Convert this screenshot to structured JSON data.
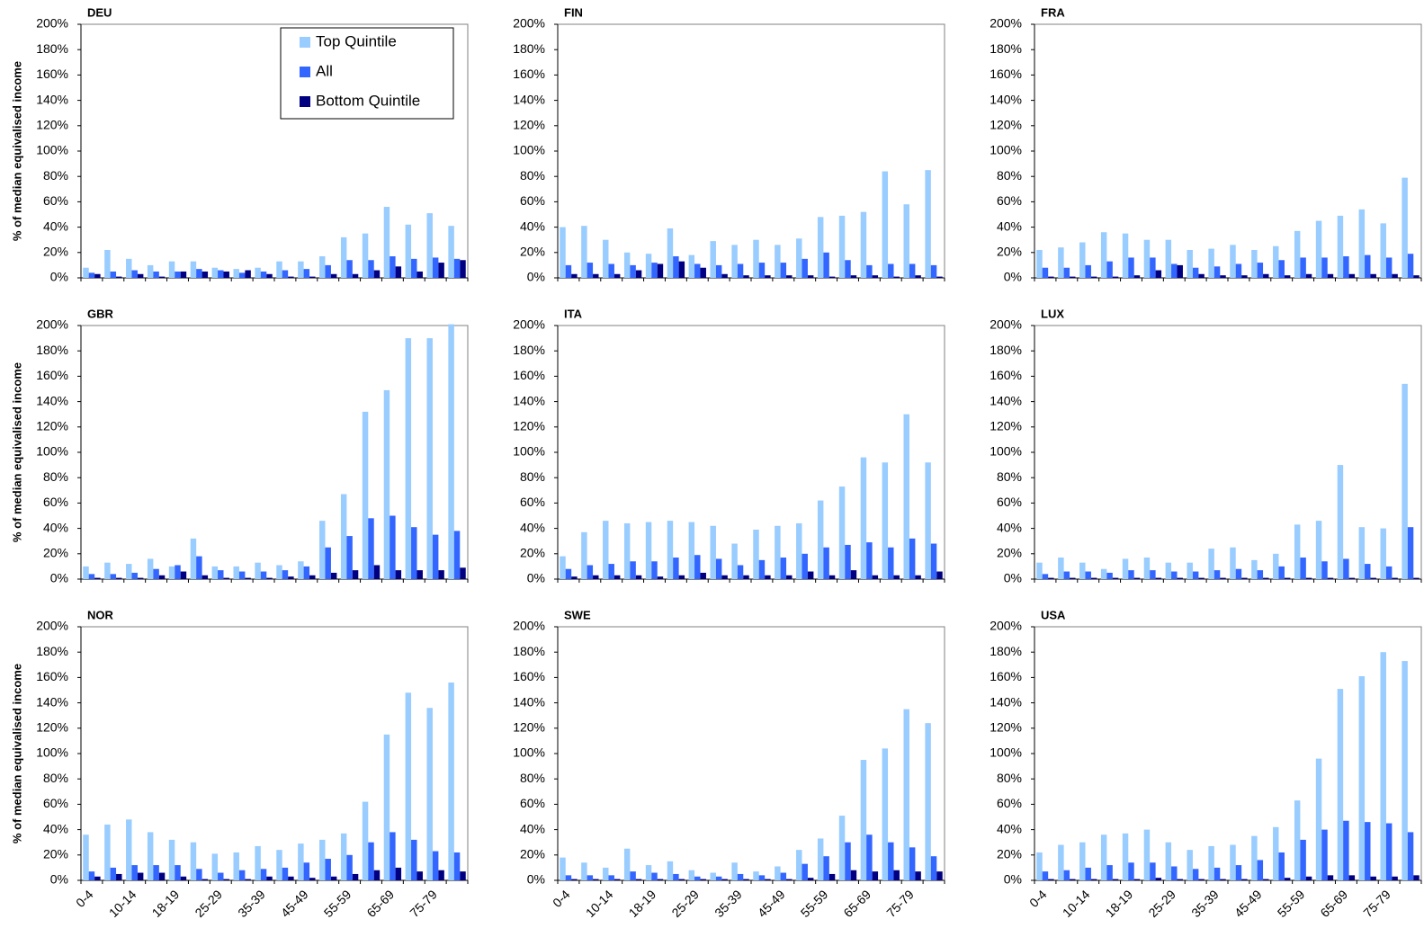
{
  "chart_data": [
    {
      "type": "bar",
      "title": "DEU",
      "ylabel": "% of median equivalised income",
      "legend": "upper right",
      "ylim": [
        0,
        200
      ],
      "yticks": [
        {
          "value": 0,
          "label": "0%"
        },
        {
          "value": 20,
          "label": "20%"
        },
        {
          "value": 40,
          "label": "40%"
        },
        {
          "value": 60,
          "label": "60%"
        },
        {
          "value": 80,
          "label": "80%"
        },
        {
          "value": 100,
          "label": "100%"
        },
        {
          "value": 120,
          "label": "120%"
        },
        {
          "value": 140,
          "label": "140%"
        },
        {
          "value": 160,
          "label": "160%"
        },
        {
          "value": 180,
          "label": "180%"
        },
        {
          "value": 200,
          "label": "200%"
        }
      ],
      "series": [
        {
          "name": "Top Quintile",
          "color": "#99ccff",
          "values": [
            8,
            22,
            15,
            10,
            13,
            13,
            8,
            7,
            8,
            13,
            13,
            17,
            32,
            35,
            56,
            42,
            51,
            41
          ]
        },
        {
          "name": "All",
          "color": "#3366ff",
          "values": [
            4,
            5,
            6,
            5,
            5,
            7,
            6,
            4,
            5,
            6,
            7,
            10,
            14,
            14,
            17,
            15,
            16,
            15
          ]
        },
        {
          "name": "Bottom Quintile",
          "color": "#000080",
          "values": [
            3,
            1,
            3,
            1,
            5,
            5,
            5,
            6,
            3,
            1,
            1,
            3,
            3,
            6,
            9,
            5,
            12,
            14
          ]
        }
      ]
    },
    {
      "type": "bar",
      "title": "FIN",
      "ylim": [
        0,
        200
      ],
      "yticks": [
        {
          "value": 0,
          "label": "0%"
        },
        {
          "value": 20,
          "label": "20%"
        },
        {
          "value": 40,
          "label": "40%"
        },
        {
          "value": 60,
          "label": "60%"
        },
        {
          "value": 80,
          "label": "80%"
        },
        {
          "value": 100,
          "label": "100%"
        },
        {
          "value": 120,
          "label": "120%"
        },
        {
          "value": 140,
          "label": "140%"
        },
        {
          "value": 160,
          "label": "160%"
        },
        {
          "value": 180,
          "label": "180%"
        },
        {
          "value": 200,
          "label": "200%"
        }
      ],
      "series": [
        {
          "color": "#99ccff",
          "values": [
            40,
            41,
            30,
            20,
            19,
            39,
            18,
            29,
            26,
            30,
            26,
            31,
            48,
            49,
            52,
            84,
            58,
            85
          ]
        },
        {
          "color": "#3366ff",
          "values": [
            10,
            12,
            11,
            10,
            12,
            17,
            11,
            10,
            11,
            12,
            12,
            15,
            20,
            14,
            10,
            11,
            11,
            10
          ]
        },
        {
          "color": "#000080",
          "values": [
            3,
            3,
            3,
            6,
            11,
            13,
            8,
            3,
            2,
            2,
            2,
            2,
            1,
            2,
            2,
            1,
            2,
            1
          ]
        }
      ]
    },
    {
      "type": "bar",
      "title": "FRA",
      "ylim": [
        0,
        200
      ],
      "yticks": [
        {
          "value": 0,
          "label": "0%"
        },
        {
          "value": 20,
          "label": "20%"
        },
        {
          "value": 40,
          "label": "40%"
        },
        {
          "value": 60,
          "label": "60%"
        },
        {
          "value": 80,
          "label": "80%"
        },
        {
          "value": 100,
          "label": "100%"
        },
        {
          "value": 120,
          "label": "120%"
        },
        {
          "value": 140,
          "label": "140%"
        },
        {
          "value": 160,
          "label": "160%"
        },
        {
          "value": 180,
          "label": "180%"
        },
        {
          "value": 200,
          "label": "200%"
        }
      ],
      "series": [
        {
          "color": "#99ccff",
          "values": [
            22,
            24,
            28,
            36,
            35,
            30,
            30,
            22,
            23,
            26,
            22,
            25,
            37,
            45,
            49,
            54,
            43,
            79
          ]
        },
        {
          "color": "#3366ff",
          "values": [
            8,
            8,
            10,
            13,
            16,
            16,
            11,
            8,
            9,
            11,
            12,
            14,
            16,
            16,
            17,
            18,
            16,
            19
          ]
        },
        {
          "color": "#000080",
          "values": [
            1,
            1,
            1,
            1,
            2,
            6,
            10,
            3,
            2,
            2,
            3,
            2,
            3,
            3,
            3,
            3,
            3,
            2
          ]
        }
      ]
    },
    {
      "type": "bar",
      "title": "GBR",
      "ylabel": "% of median equivalised income",
      "ylim": [
        0,
        200
      ],
      "yticks": [
        {
          "value": 0,
          "label": "0%"
        },
        {
          "value": 20,
          "label": "20%"
        },
        {
          "value": 40,
          "label": "40%"
        },
        {
          "value": 60,
          "label": "60%"
        },
        {
          "value": 80,
          "label": "80%"
        },
        {
          "value": 100,
          "label": "100%"
        },
        {
          "value": 120,
          "label": "120%"
        },
        {
          "value": 140,
          "label": "140%"
        },
        {
          "value": 160,
          "label": "160%"
        },
        {
          "value": 180,
          "label": "180%"
        },
        {
          "value": 200,
          "label": "200%"
        }
      ],
      "series": [
        {
          "color": "#99ccff",
          "values": [
            10,
            13,
            12,
            16,
            10,
            32,
            10,
            10,
            13,
            11,
            14,
            46,
            67,
            132,
            149,
            190,
            190,
            201
          ]
        },
        {
          "color": "#3366ff",
          "values": [
            4,
            4,
            5,
            8,
            11,
            18,
            7,
            6,
            6,
            7,
            10,
            25,
            34,
            48,
            50,
            41,
            35,
            38
          ]
        },
        {
          "color": "#000080",
          "values": [
            1,
            1,
            1,
            3,
            6,
            3,
            1,
            1,
            1,
            2,
            3,
            5,
            7,
            11,
            7,
            7,
            7,
            9
          ]
        }
      ]
    },
    {
      "type": "bar",
      "title": "ITA",
      "ylim": [
        0,
        200
      ],
      "yticks": [
        {
          "value": 0,
          "label": "0%"
        },
        {
          "value": 20,
          "label": "20%"
        },
        {
          "value": 40,
          "label": "40%"
        },
        {
          "value": 60,
          "label": "60%"
        },
        {
          "value": 80,
          "label": "80%"
        },
        {
          "value": 100,
          "label": "100%"
        },
        {
          "value": 120,
          "label": "120%"
        },
        {
          "value": 140,
          "label": "140%"
        },
        {
          "value": 160,
          "label": "160%"
        },
        {
          "value": 180,
          "label": "180%"
        },
        {
          "value": 200,
          "label": "200%"
        }
      ],
      "series": [
        {
          "color": "#99ccff",
          "values": [
            18,
            37,
            46,
            44,
            45,
            46,
            45,
            42,
            28,
            39,
            42,
            44,
            62,
            73,
            96,
            92,
            130,
            92
          ]
        },
        {
          "color": "#3366ff",
          "values": [
            8,
            11,
            12,
            14,
            14,
            17,
            19,
            16,
            11,
            15,
            17,
            20,
            25,
            27,
            29,
            25,
            32,
            28
          ]
        },
        {
          "color": "#000080",
          "values": [
            2,
            3,
            3,
            3,
            2,
            3,
            5,
            3,
            3,
            3,
            3,
            6,
            3,
            7,
            3,
            3,
            3,
            6
          ]
        }
      ]
    },
    {
      "type": "bar",
      "title": "LUX",
      "ylim": [
        0,
        200
      ],
      "yticks": [
        {
          "value": 0,
          "label": "0%"
        },
        {
          "value": 20,
          "label": "20%"
        },
        {
          "value": 40,
          "label": "40%"
        },
        {
          "value": 60,
          "label": "60%"
        },
        {
          "value": 80,
          "label": "80%"
        },
        {
          "value": 100,
          "label": "100%"
        },
        {
          "value": 120,
          "label": "120%"
        },
        {
          "value": 140,
          "label": "140%"
        },
        {
          "value": 160,
          "label": "160%"
        },
        {
          "value": 180,
          "label": "180%"
        },
        {
          "value": 200,
          "label": "200%"
        }
      ],
      "series": [
        {
          "color": "#99ccff",
          "values": [
            13,
            17,
            13,
            8,
            16,
            17,
            13,
            13,
            24,
            25,
            15,
            20,
            43,
            46,
            90,
            41,
            40,
            154
          ]
        },
        {
          "color": "#3366ff",
          "values": [
            4,
            6,
            6,
            5,
            7,
            7,
            6,
            6,
            7,
            8,
            7,
            10,
            17,
            14,
            16,
            12,
            10,
            41
          ]
        },
        {
          "color": "#000080",
          "values": [
            1,
            1,
            1,
            1,
            1,
            1,
            1,
            1,
            1,
            1,
            1,
            1,
            1,
            1,
            1,
            1,
            1,
            1
          ]
        }
      ]
    },
    {
      "type": "bar",
      "title": "NOR",
      "ylabel": "% of median equivalised income",
      "categories": [
        "0-4",
        null,
        "10-14",
        null,
        "18-19",
        null,
        "25-29",
        null,
        "35-39",
        null,
        "45-49",
        null,
        "55-59",
        null,
        "65-69",
        null,
        "75-79",
        null
      ],
      "ylim": [
        0,
        200
      ],
      "yticks": [
        {
          "value": 0,
          "label": "0%"
        },
        {
          "value": 20,
          "label": "20%"
        },
        {
          "value": 40,
          "label": "40%"
        },
        {
          "value": 60,
          "label": "60%"
        },
        {
          "value": 80,
          "label": "80%"
        },
        {
          "value": 100,
          "label": "100%"
        },
        {
          "value": 120,
          "label": "120%"
        },
        {
          "value": 140,
          "label": "140%"
        },
        {
          "value": 160,
          "label": "160%"
        },
        {
          "value": 180,
          "label": "180%"
        },
        {
          "value": 200,
          "label": "200%"
        }
      ],
      "series": [
        {
          "color": "#99ccff",
          "values": [
            36,
            44,
            48,
            38,
            32,
            30,
            21,
            22,
            27,
            24,
            29,
            32,
            37,
            62,
            115,
            148,
            136,
            156
          ]
        },
        {
          "color": "#3366ff",
          "values": [
            7,
            10,
            12,
            12,
            12,
            9,
            6,
            8,
            9,
            10,
            14,
            17,
            20,
            30,
            38,
            32,
            23,
            22
          ]
        },
        {
          "color": "#000080",
          "values": [
            3,
            5,
            6,
            6,
            3,
            1,
            1,
            1,
            3,
            3,
            2,
            3,
            5,
            8,
            10,
            7,
            8,
            7
          ]
        }
      ]
    },
    {
      "type": "bar",
      "title": "SWE",
      "categories": [
        "0-4",
        null,
        "10-14",
        null,
        "18-19",
        null,
        "25-29",
        null,
        "35-39",
        null,
        "45-49",
        null,
        "55-59",
        null,
        "65-69",
        null,
        "75-79",
        null
      ],
      "ylim": [
        0,
        200
      ],
      "yticks": [
        {
          "value": 0,
          "label": "0%"
        },
        {
          "value": 20,
          "label": "20%"
        },
        {
          "value": 40,
          "label": "40%"
        },
        {
          "value": 60,
          "label": "60%"
        },
        {
          "value": 80,
          "label": "80%"
        },
        {
          "value": 100,
          "label": "100%"
        },
        {
          "value": 120,
          "label": "120%"
        },
        {
          "value": 140,
          "label": "140%"
        },
        {
          "value": 160,
          "label": "160%"
        },
        {
          "value": 180,
          "label": "180%"
        },
        {
          "value": 200,
          "label": "200%"
        }
      ],
      "series": [
        {
          "color": "#99ccff",
          "values": [
            18,
            14,
            10,
            25,
            12,
            15,
            8,
            6,
            14,
            7,
            11,
            24,
            33,
            51,
            95,
            104,
            135,
            124
          ]
        },
        {
          "color": "#3366ff",
          "values": [
            4,
            4,
            4,
            7,
            6,
            5,
            3,
            3,
            5,
            4,
            6,
            13,
            19,
            30,
            36,
            30,
            26,
            19
          ]
        },
        {
          "color": "#000080",
          "values": [
            1,
            1,
            1,
            1,
            1,
            1,
            1,
            1,
            1,
            1,
            1,
            2,
            5,
            8,
            7,
            8,
            7,
            7
          ]
        }
      ]
    },
    {
      "type": "bar",
      "title": "USA",
      "categories": [
        "0-4",
        null,
        "10-14",
        null,
        "18-19",
        null,
        "25-29",
        null,
        "35-39",
        null,
        "45-49",
        null,
        "55-59",
        null,
        "65-69",
        null,
        "75-79",
        null
      ],
      "ylim": [
        0,
        200
      ],
      "yticks": [
        {
          "value": 0,
          "label": "0%"
        },
        {
          "value": 20,
          "label": "20%"
        },
        {
          "value": 40,
          "label": "40%"
        },
        {
          "value": 60,
          "label": "60%"
        },
        {
          "value": 80,
          "label": "80%"
        },
        {
          "value": 100,
          "label": "100%"
        },
        {
          "value": 120,
          "label": "120%"
        },
        {
          "value": 140,
          "label": "140%"
        },
        {
          "value": 160,
          "label": "160%"
        },
        {
          "value": 180,
          "label": "180%"
        },
        {
          "value": 200,
          "label": "200%"
        }
      ],
      "series": [
        {
          "color": "#99ccff",
          "values": [
            22,
            28,
            30,
            36,
            37,
            40,
            30,
            24,
            27,
            28,
            35,
            42,
            63,
            96,
            151,
            161,
            180,
            173
          ]
        },
        {
          "color": "#3366ff",
          "values": [
            7,
            8,
            10,
            12,
            14,
            14,
            11,
            9,
            10,
            12,
            16,
            22,
            32,
            40,
            47,
            46,
            45,
            38
          ]
        },
        {
          "color": "#000080",
          "values": [
            1,
            1,
            1,
            1,
            1,
            2,
            1,
            1,
            1,
            1,
            1,
            2,
            3,
            4,
            4,
            3,
            3,
            4
          ]
        }
      ]
    }
  ]
}
